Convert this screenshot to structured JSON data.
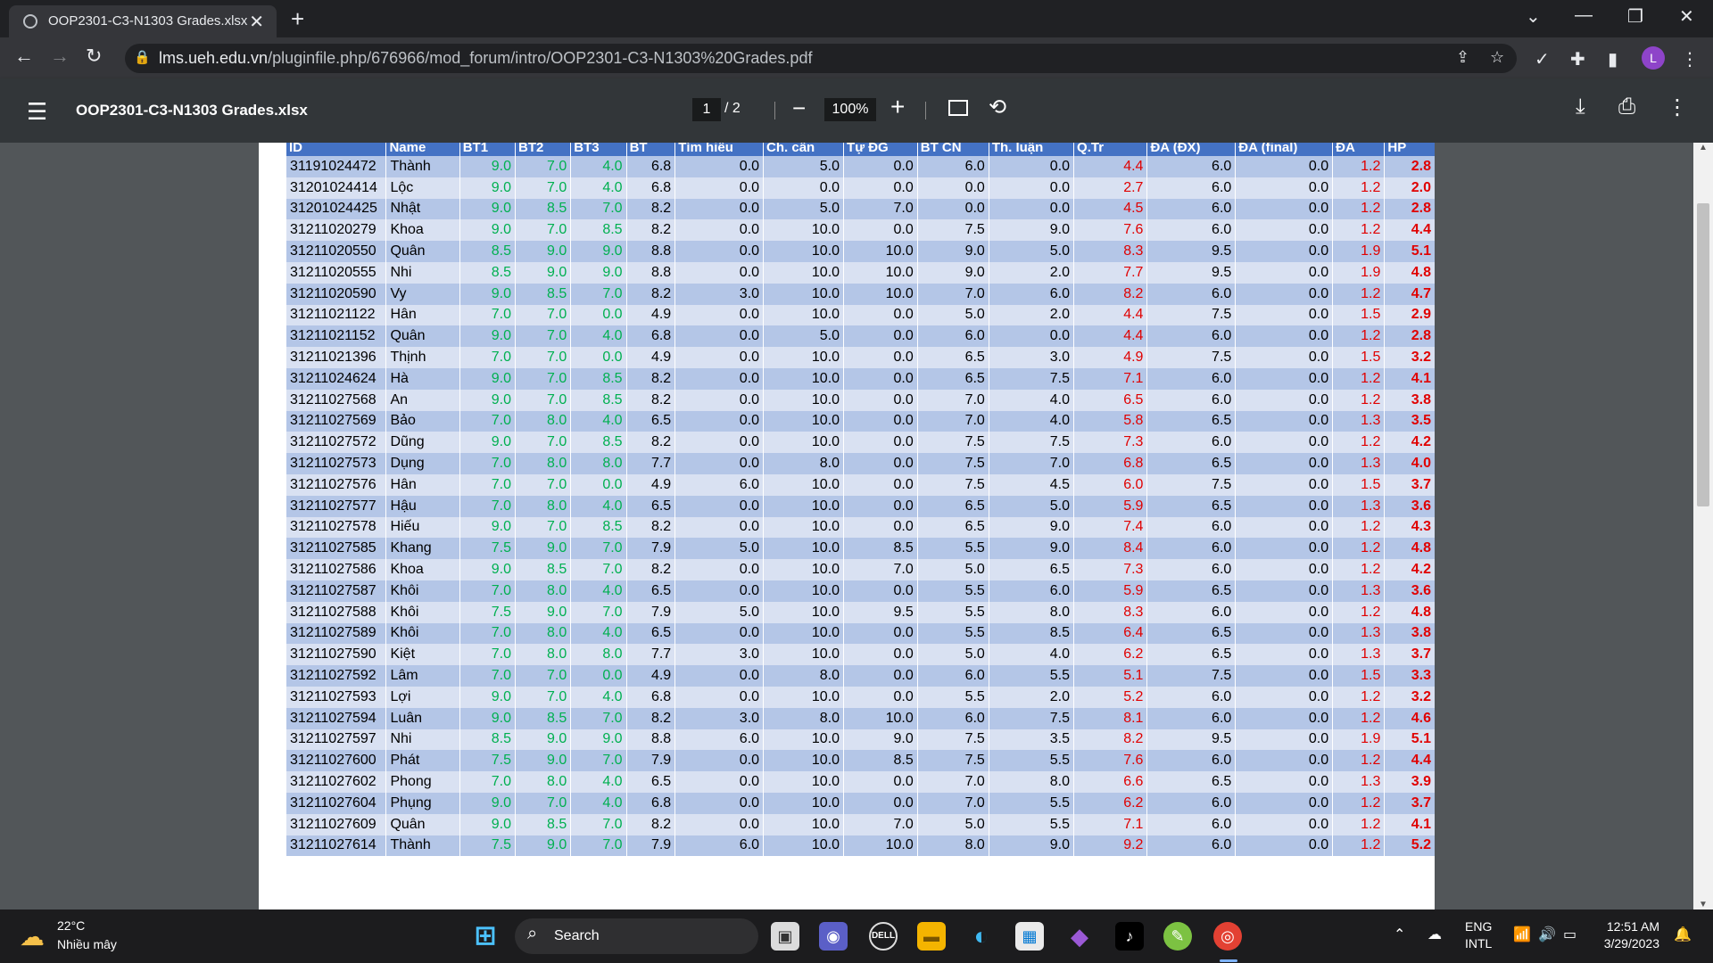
{
  "browser": {
    "tab_title": "OOP2301-C3-N1303 Grades.xlsx",
    "url_host": "lms.ueh.edu.vn",
    "url_path": "/pluginfile.php/676966/mod_forum/intro/OOP2301-C3-N1303%20Grades.pdf",
    "profile_initial": "L"
  },
  "pdf": {
    "title": "OOP2301-C3-N1303 Grades.xlsx",
    "current_page": "1",
    "total_pages": "/  2",
    "zoom": "100%"
  },
  "table": {
    "headers": [
      "ID",
      "Name",
      "BT1",
      "BT2",
      "BT3",
      "BT",
      "Tìm hiểu",
      "Ch. cần",
      "Tự ĐG",
      "BT CN",
      "Th. luận",
      "Q.Tr",
      "ĐA (ĐX)",
      "ĐA (final)",
      "ĐA",
      "HP"
    ],
    "rows": [
      [
        "31191024472",
        "Thành",
        "9.0",
        "7.0",
        "4.0",
        "6.8",
        "0.0",
        "5.0",
        "0.0",
        "6.0",
        "0.0",
        "4.4",
        "6.0",
        "0.0",
        "1.2",
        "2.8"
      ],
      [
        "31201024414",
        "Lộc",
        "9.0",
        "7.0",
        "4.0",
        "6.8",
        "0.0",
        "0.0",
        "0.0",
        "0.0",
        "0.0",
        "2.7",
        "6.0",
        "0.0",
        "1.2",
        "2.0"
      ],
      [
        "31201024425",
        "Nhật",
        "9.0",
        "8.5",
        "7.0",
        "8.2",
        "0.0",
        "5.0",
        "7.0",
        "0.0",
        "0.0",
        "4.5",
        "6.0",
        "0.0",
        "1.2",
        "2.8"
      ],
      [
        "31211020279",
        "Khoa",
        "9.0",
        "7.0",
        "8.5",
        "8.2",
        "0.0",
        "10.0",
        "0.0",
        "7.5",
        "9.0",
        "7.6",
        "6.0",
        "0.0",
        "1.2",
        "4.4"
      ],
      [
        "31211020550",
        "Quân",
        "8.5",
        "9.0",
        "9.0",
        "8.8",
        "0.0",
        "10.0",
        "10.0",
        "9.0",
        "5.0",
        "8.3",
        "9.5",
        "0.0",
        "1.9",
        "5.1"
      ],
      [
        "31211020555",
        "Nhi",
        "8.5",
        "9.0",
        "9.0",
        "8.8",
        "0.0",
        "10.0",
        "10.0",
        "9.0",
        "2.0",
        "7.7",
        "9.5",
        "0.0",
        "1.9",
        "4.8"
      ],
      [
        "31211020590",
        "Vy",
        "9.0",
        "8.5",
        "7.0",
        "8.2",
        "3.0",
        "10.0",
        "10.0",
        "7.0",
        "6.0",
        "8.2",
        "6.0",
        "0.0",
        "1.2",
        "4.7"
      ],
      [
        "31211021122",
        "Hân",
        "7.0",
        "7.0",
        "0.0",
        "4.9",
        "0.0",
        "10.0",
        "0.0",
        "5.0",
        "2.0",
        "4.4",
        "7.5",
        "0.0",
        "1.5",
        "2.9"
      ],
      [
        "31211021152",
        "Quân",
        "9.0",
        "7.0",
        "4.0",
        "6.8",
        "0.0",
        "5.0",
        "0.0",
        "6.0",
        "0.0",
        "4.4",
        "6.0",
        "0.0",
        "1.2",
        "2.8"
      ],
      [
        "31211021396",
        "Thịnh",
        "7.0",
        "7.0",
        "0.0",
        "4.9",
        "0.0",
        "10.0",
        "0.0",
        "6.5",
        "3.0",
        "4.9",
        "7.5",
        "0.0",
        "1.5",
        "3.2"
      ],
      [
        "31211024624",
        "Hà",
        "9.0",
        "7.0",
        "8.5",
        "8.2",
        "0.0",
        "10.0",
        "0.0",
        "6.5",
        "7.5",
        "7.1",
        "6.0",
        "0.0",
        "1.2",
        "4.1"
      ],
      [
        "31211027568",
        "An",
        "9.0",
        "7.0",
        "8.5",
        "8.2",
        "0.0",
        "10.0",
        "0.0",
        "7.0",
        "4.0",
        "6.5",
        "6.0",
        "0.0",
        "1.2",
        "3.8"
      ],
      [
        "31211027569",
        "Bảo",
        "7.0",
        "8.0",
        "4.0",
        "6.5",
        "0.0",
        "10.0",
        "0.0",
        "7.0",
        "4.0",
        "5.8",
        "6.5",
        "0.0",
        "1.3",
        "3.5"
      ],
      [
        "31211027572",
        "Dũng",
        "9.0",
        "7.0",
        "8.5",
        "8.2",
        "0.0",
        "10.0",
        "0.0",
        "7.5",
        "7.5",
        "7.3",
        "6.0",
        "0.0",
        "1.2",
        "4.2"
      ],
      [
        "31211027573",
        "Dụng",
        "7.0",
        "8.0",
        "8.0",
        "7.7",
        "0.0",
        "8.0",
        "0.0",
        "7.5",
        "7.0",
        "6.8",
        "6.5",
        "0.0",
        "1.3",
        "4.0"
      ],
      [
        "31211027576",
        "Hân",
        "7.0",
        "7.0",
        "0.0",
        "4.9",
        "6.0",
        "10.0",
        "0.0",
        "7.5",
        "4.5",
        "6.0",
        "7.5",
        "0.0",
        "1.5",
        "3.7"
      ],
      [
        "31211027577",
        "Hậu",
        "7.0",
        "8.0",
        "4.0",
        "6.5",
        "0.0",
        "10.0",
        "0.0",
        "6.5",
        "5.0",
        "5.9",
        "6.5",
        "0.0",
        "1.3",
        "3.6"
      ],
      [
        "31211027578",
        "Hiếu",
        "9.0",
        "7.0",
        "8.5",
        "8.2",
        "0.0",
        "10.0",
        "0.0",
        "6.5",
        "9.0",
        "7.4",
        "6.0",
        "0.0",
        "1.2",
        "4.3"
      ],
      [
        "31211027585",
        "Khang",
        "7.5",
        "9.0",
        "7.0",
        "7.9",
        "5.0",
        "10.0",
        "8.5",
        "5.5",
        "9.0",
        "8.4",
        "6.0",
        "0.0",
        "1.2",
        "4.8"
      ],
      [
        "31211027586",
        "Khoa",
        "9.0",
        "8.5",
        "7.0",
        "8.2",
        "0.0",
        "10.0",
        "7.0",
        "5.0",
        "6.5",
        "7.3",
        "6.0",
        "0.0",
        "1.2",
        "4.2"
      ],
      [
        "31211027587",
        "Khôi",
        "7.0",
        "8.0",
        "4.0",
        "6.5",
        "0.0",
        "10.0",
        "0.0",
        "5.5",
        "6.0",
        "5.9",
        "6.5",
        "0.0",
        "1.3",
        "3.6"
      ],
      [
        "31211027588",
        "Khôi",
        "7.5",
        "9.0",
        "7.0",
        "7.9",
        "5.0",
        "10.0",
        "9.5",
        "5.5",
        "8.0",
        "8.3",
        "6.0",
        "0.0",
        "1.2",
        "4.8"
      ],
      [
        "31211027589",
        "Khôi",
        "7.0",
        "8.0",
        "4.0",
        "6.5",
        "0.0",
        "10.0",
        "0.0",
        "5.5",
        "8.5",
        "6.4",
        "6.5",
        "0.0",
        "1.3",
        "3.8"
      ],
      [
        "31211027590",
        "Kiệt",
        "7.0",
        "8.0",
        "8.0",
        "7.7",
        "3.0",
        "10.0",
        "0.0",
        "5.0",
        "4.0",
        "6.2",
        "6.5",
        "0.0",
        "1.3",
        "3.7"
      ],
      [
        "31211027592",
        "Lâm",
        "7.0",
        "7.0",
        "0.0",
        "4.9",
        "0.0",
        "8.0",
        "0.0",
        "6.0",
        "5.5",
        "5.1",
        "7.5",
        "0.0",
        "1.5",
        "3.3"
      ],
      [
        "31211027593",
        "Lợi",
        "9.0",
        "7.0",
        "4.0",
        "6.8",
        "0.0",
        "10.0",
        "0.0",
        "5.5",
        "2.0",
        "5.2",
        "6.0",
        "0.0",
        "1.2",
        "3.2"
      ],
      [
        "31211027594",
        "Luân",
        "9.0",
        "8.5",
        "7.0",
        "8.2",
        "3.0",
        "8.0",
        "10.0",
        "6.0",
        "7.5",
        "8.1",
        "6.0",
        "0.0",
        "1.2",
        "4.6"
      ],
      [
        "31211027597",
        "Nhi",
        "8.5",
        "9.0",
        "9.0",
        "8.8",
        "6.0",
        "10.0",
        "9.0",
        "7.5",
        "3.5",
        "8.2",
        "9.5",
        "0.0",
        "1.9",
        "5.1"
      ],
      [
        "31211027600",
        "Phát",
        "7.5",
        "9.0",
        "7.0",
        "7.9",
        "0.0",
        "10.0",
        "8.5",
        "7.5",
        "5.5",
        "7.6",
        "6.0",
        "0.0",
        "1.2",
        "4.4"
      ],
      [
        "31211027602",
        "Phong",
        "7.0",
        "8.0",
        "4.0",
        "6.5",
        "0.0",
        "10.0",
        "0.0",
        "7.0",
        "8.0",
        "6.6",
        "6.5",
        "0.0",
        "1.3",
        "3.9"
      ],
      [
        "31211027604",
        "Phụng",
        "9.0",
        "7.0",
        "4.0",
        "6.8",
        "0.0",
        "10.0",
        "0.0",
        "7.0",
        "5.5",
        "6.2",
        "6.0",
        "0.0",
        "1.2",
        "3.7"
      ],
      [
        "31211027609",
        "Quân",
        "9.0",
        "8.5",
        "7.0",
        "8.2",
        "0.0",
        "10.0",
        "7.0",
        "5.0",
        "5.5",
        "7.1",
        "6.0",
        "0.0",
        "1.2",
        "4.1"
      ],
      [
        "31211027614",
        "Thành",
        "7.5",
        "9.0",
        "7.0",
        "7.9",
        "6.0",
        "10.0",
        "10.0",
        "8.0",
        "9.0",
        "9.2",
        "6.0",
        "0.0",
        "1.2",
        "5.2"
      ]
    ]
  },
  "taskbar": {
    "temperature": "22°C",
    "weather": "Nhiều mây",
    "search_label": "Search",
    "lang_top": "ENG",
    "lang_bottom": "INTL",
    "time": "12:51 AM",
    "date": "3/29/2023"
  },
  "colors": {
    "header_bg": "#4472c4",
    "row_odd": "#b4c6e7",
    "row_even": "#d9e1f2",
    "green_text": "#00b050",
    "red_text": "#e00000"
  }
}
